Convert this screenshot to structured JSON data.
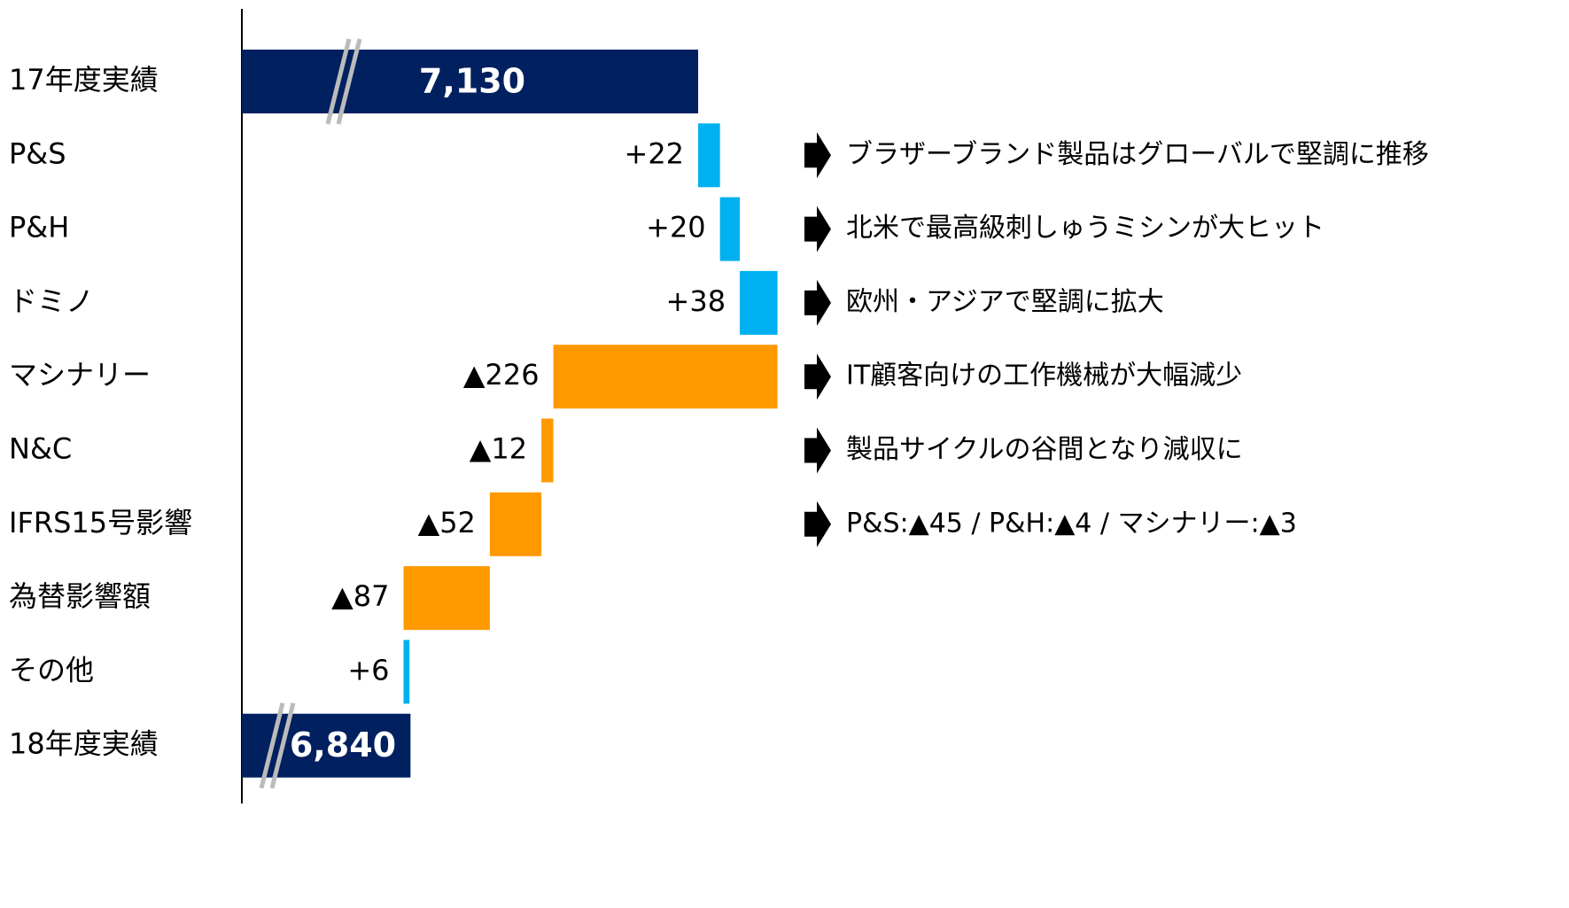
{
  "chart_data": {
    "type": "waterfall",
    "categories": [
      "17年度実績",
      "P&S",
      "P&H",
      "ドミノ",
      "マシナリー",
      "N&C",
      "IFRS15号影響",
      "為替影響額",
      "その他",
      "18年度実績"
    ],
    "values": [
      7130,
      22,
      20,
      38,
      -226,
      -12,
      -52,
      -87,
      6,
      6840
    ],
    "value_labels": [
      "7,130",
      "+22",
      "+20",
      "+38",
      "▲226",
      "▲12",
      "▲52",
      "▲87",
      "+6",
      "6,840"
    ],
    "totals": [
      0,
      9
    ],
    "colors": {
      "total": "#002060",
      "increase": "#00b0f0",
      "decrease": "#ff9900"
    },
    "xlim": [
      6670,
      7230
    ],
    "annotations": [
      "ブラザーブランド製品はグローバルで堅調に推移",
      "北米で最高級刺しゅうミシンが大ヒット",
      "欧州・アジアで堅調に拡大",
      "IT顧客向けの工作機械が大幅減少",
      "製品サイクルの谷間となり減収に",
      "P&S:▲45 / P&H:▲4 / マシナリー:▲3"
    ]
  }
}
